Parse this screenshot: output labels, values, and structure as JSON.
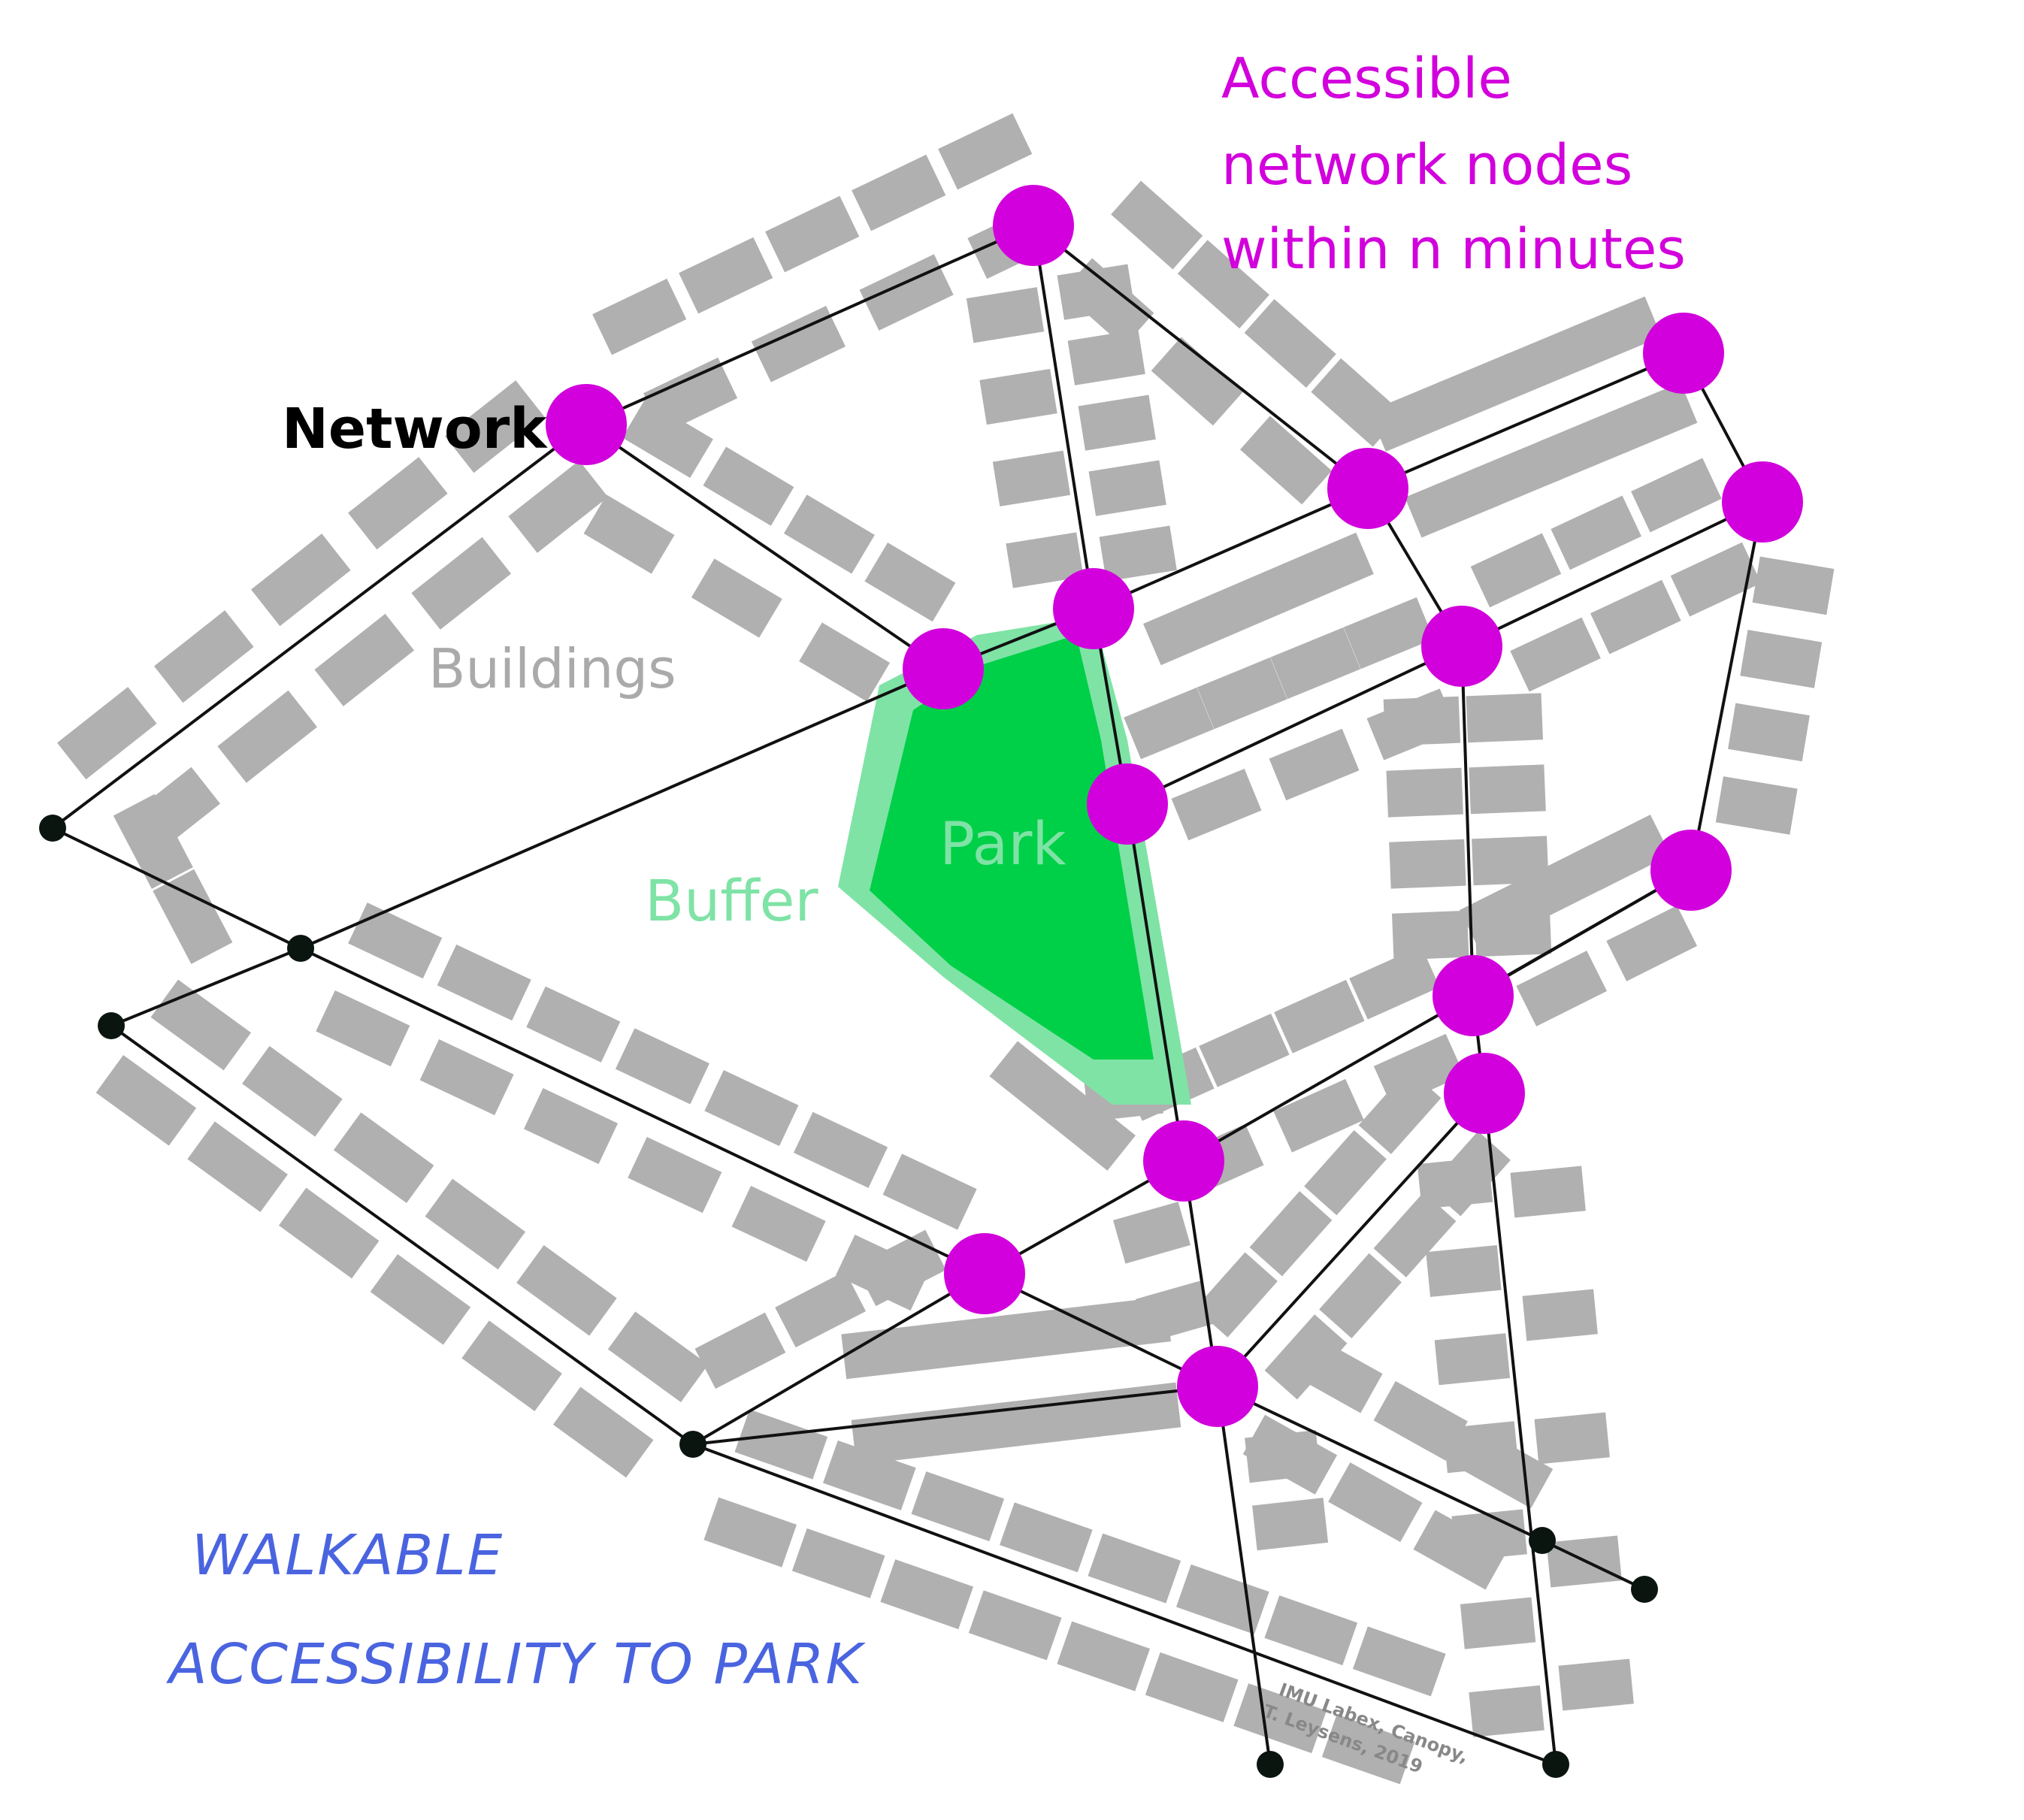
{
  "labels": {
    "network": "Network",
    "buildings": "Buildings",
    "park": "Park",
    "buffer": "Buffer",
    "accessible": [
      "Accessible",
      "network nodes",
      "within n minutes"
    ],
    "title": [
      "WALKABLE",
      "ACCESSIBILITY TO PARK"
    ],
    "credit": [
      "IMU Labex, Canopy,",
      "T. Leysens, 2019"
    ]
  },
  "colors": {
    "edge": "#111111",
    "accessible_node": "#d200dc",
    "end_node": "#0a1510",
    "building": "#b0b0b0",
    "park": "#00d048",
    "buffer": "#7fe3a6"
  }
}
